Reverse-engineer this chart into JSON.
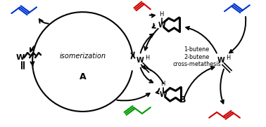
{
  "bg_color": "#ffffff",
  "label_A": "A",
  "label_B": "B",
  "label_iso": "isomerization",
  "label_cross": "1-butene\n2-butene\ncross-metathesis",
  "color_blue": "#0033cc",
  "color_red": "#cc0000",
  "color_green": "#009900",
  "color_black": "#000000",
  "figw": 3.78,
  "figh": 1.81,
  "dpi": 100
}
